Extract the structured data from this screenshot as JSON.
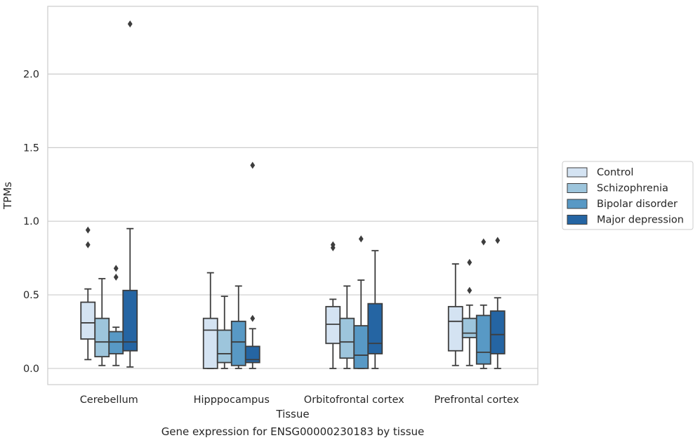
{
  "caption": "Gene expression for ENSG00000230183 by tissue",
  "chart_data": {
    "type": "box",
    "xlabel": "Tissue",
    "ylabel": "TPMs",
    "ylim": [
      -0.11,
      2.46
    ],
    "yticks": [
      0.0,
      0.5,
      1.0,
      1.5,
      2.0
    ],
    "ytick_labels": [
      "0.0",
      "0.5",
      "1.0",
      "1.5",
      "2.0"
    ],
    "grid": "horizontal",
    "legend_position": "right",
    "categories": [
      "Cerebellum",
      "Hipppocampus",
      "Orbitofrontal cortex",
      "Prefrontal cortex"
    ],
    "series": [
      {
        "name": "Control",
        "color": "#d4e3f2",
        "boxes": [
          {
            "whislo": 0.06,
            "q1": 0.2,
            "med": 0.31,
            "q3": 0.45,
            "whishi": 0.54,
            "fliers": [
              0.84,
              0.94
            ]
          },
          {
            "whislo": 0.0,
            "q1": 0.0,
            "med": 0.26,
            "q3": 0.34,
            "whishi": 0.65,
            "fliers": []
          },
          {
            "whislo": 0.0,
            "q1": 0.17,
            "med": 0.3,
            "q3": 0.42,
            "whishi": 0.47,
            "fliers": [
              0.82,
              0.84
            ]
          },
          {
            "whislo": 0.02,
            "q1": 0.12,
            "med": 0.32,
            "q3": 0.42,
            "whishi": 0.71,
            "fliers": []
          }
        ]
      },
      {
        "name": "Schizophrenia",
        "color": "#9dc5dc",
        "boxes": [
          {
            "whislo": 0.02,
            "q1": 0.08,
            "med": 0.18,
            "q3": 0.34,
            "whishi": 0.61,
            "fliers": []
          },
          {
            "whislo": 0.0,
            "q1": 0.04,
            "med": 0.1,
            "q3": 0.26,
            "whishi": 0.49,
            "fliers": []
          },
          {
            "whislo": 0.0,
            "q1": 0.07,
            "med": 0.18,
            "q3": 0.34,
            "whishi": 0.56,
            "fliers": []
          },
          {
            "whislo": 0.02,
            "q1": 0.21,
            "med": 0.24,
            "q3": 0.34,
            "whishi": 0.43,
            "fliers": [
              0.53,
              0.72
            ]
          }
        ]
      },
      {
        "name": "Bipolar disorder",
        "color": "#5899c5",
        "boxes": [
          {
            "whislo": 0.02,
            "q1": 0.1,
            "med": 0.18,
            "q3": 0.25,
            "whishi": 0.28,
            "fliers": [
              0.62,
              0.68
            ]
          },
          {
            "whislo": 0.0,
            "q1": 0.02,
            "med": 0.18,
            "q3": 0.32,
            "whishi": 0.56,
            "fliers": []
          },
          {
            "whislo": 0.0,
            "q1": 0.0,
            "med": 0.09,
            "q3": 0.29,
            "whishi": 0.6,
            "fliers": [
              0.88
            ]
          },
          {
            "whislo": 0.0,
            "q1": 0.03,
            "med": 0.11,
            "q3": 0.36,
            "whishi": 0.43,
            "fliers": [
              0.86
            ]
          }
        ]
      },
      {
        "name": "Major depression",
        "color": "#2565a3",
        "boxes": [
          {
            "whislo": 0.01,
            "q1": 0.12,
            "med": 0.18,
            "q3": 0.53,
            "whishi": 0.95,
            "fliers": [
              2.34
            ]
          },
          {
            "whislo": 0.0,
            "q1": 0.04,
            "med": 0.06,
            "q3": 0.15,
            "whishi": 0.27,
            "fliers": [
              0.34,
              1.38
            ]
          },
          {
            "whislo": 0.0,
            "q1": 0.1,
            "med": 0.17,
            "q3": 0.44,
            "whishi": 0.8,
            "fliers": []
          },
          {
            "whislo": 0.0,
            "q1": 0.1,
            "med": 0.23,
            "q3": 0.39,
            "whishi": 0.48,
            "fliers": [
              0.87
            ]
          }
        ]
      }
    ]
  }
}
